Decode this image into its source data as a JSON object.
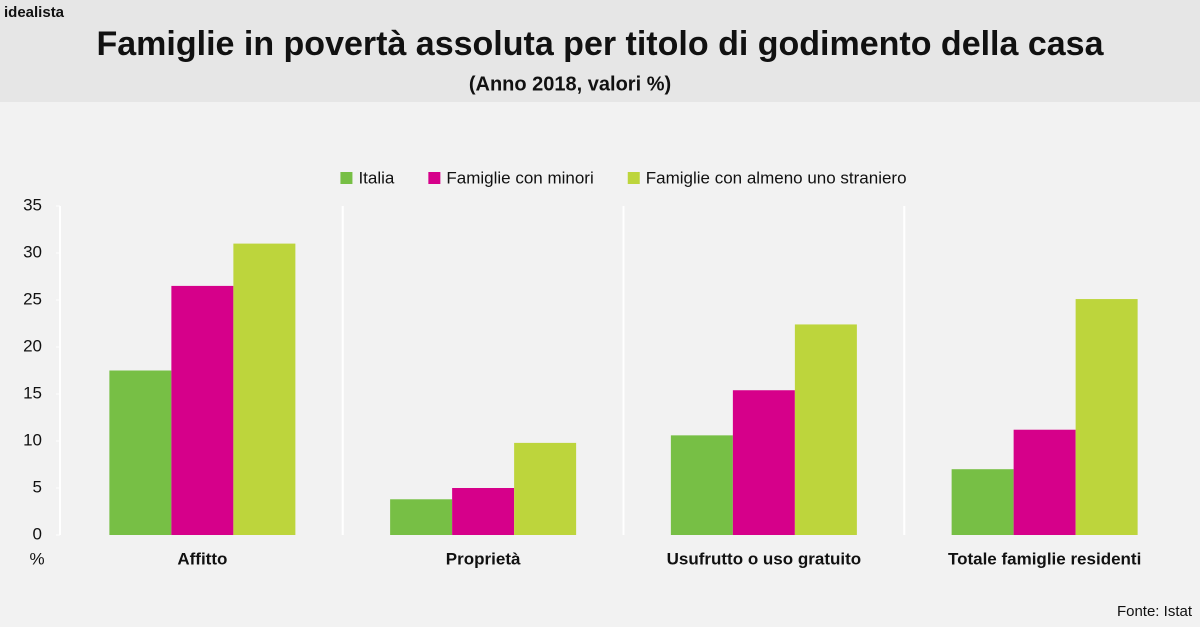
{
  "brand": "idealista",
  "chart_data": {
    "type": "bar",
    "title": "Famiglie in povertà assoluta per titolo di godimento della casa",
    "subtitle": "(Anno 2018, valori %)",
    "y_label": "%",
    "source": "Fonte: Istat",
    "categories": [
      "Affitto",
      "Proprietà",
      "Usufrutto o uso gratuito",
      "Totale famiglie residenti"
    ],
    "series": [
      {
        "name": "Italia",
        "color": "#77bf45",
        "values": [
          17.5,
          3.8,
          10.6,
          7.0
        ]
      },
      {
        "name": "Famiglie con minori",
        "color": "#d6008a",
        "values": [
          26.5,
          5.0,
          15.4,
          11.2
        ]
      },
      {
        "name": "Famiglie con almeno uno straniero",
        "color": "#bdd53c",
        "values": [
          31.0,
          9.8,
          22.4,
          25.1
        ]
      }
    ],
    "ylim": [
      0,
      35
    ],
    "yticks": [
      0,
      5,
      10,
      15,
      20,
      25,
      30,
      35
    ],
    "legend": "top"
  }
}
